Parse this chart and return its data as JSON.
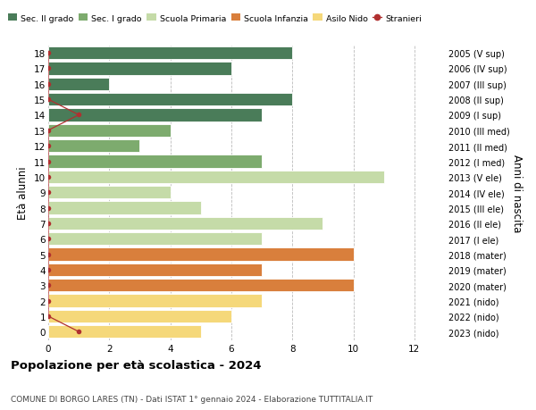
{
  "ages": [
    18,
    17,
    16,
    15,
    14,
    13,
    12,
    11,
    10,
    9,
    8,
    7,
    6,
    5,
    4,
    3,
    2,
    1,
    0
  ],
  "years": [
    "2005 (V sup)",
    "2006 (IV sup)",
    "2007 (III sup)",
    "2008 (II sup)",
    "2009 (I sup)",
    "2010 (III med)",
    "2011 (II med)",
    "2012 (I med)",
    "2013 (V ele)",
    "2014 (IV ele)",
    "2015 (III ele)",
    "2016 (II ele)",
    "2017 (I ele)",
    "2018 (mater)",
    "2019 (mater)",
    "2020 (mater)",
    "2021 (nido)",
    "2022 (nido)",
    "2023 (nido)"
  ],
  "values": [
    8,
    6,
    2,
    8,
    7,
    4,
    3,
    7,
    11,
    4,
    5,
    9,
    7,
    10,
    7,
    10,
    7,
    6,
    5
  ],
  "bar_colors": [
    "#4a7c59",
    "#4a7c59",
    "#4a7c59",
    "#4a7c59",
    "#4a7c59",
    "#7dab6e",
    "#7dab6e",
    "#7dab6e",
    "#c5dba8",
    "#c5dba8",
    "#c5dba8",
    "#c5dba8",
    "#c5dba8",
    "#d97f3c",
    "#d97f3c",
    "#d97f3c",
    "#f5d87a",
    "#f5d87a",
    "#f5d87a"
  ],
  "stranieri_x": [
    0,
    0,
    0,
    0,
    1,
    0,
    0,
    0,
    0,
    0,
    0,
    0,
    0,
    0,
    0,
    0,
    0,
    0,
    1
  ],
  "stranieri_ages": [
    18,
    17,
    16,
    15,
    14,
    13,
    12,
    11,
    10,
    9,
    8,
    7,
    6,
    5,
    4,
    3,
    2,
    1,
    0
  ],
  "stranieri_color": "#b03030",
  "color_sec2": "#4a7c59",
  "color_sec1": "#7dab6e",
  "color_primaria": "#c5dba8",
  "color_infanzia": "#d97f3c",
  "color_nido": "#f5d87a",
  "ylabel_left": "Età alunni",
  "ylabel_right": "Anni di nascita",
  "title": "Popolazione per età scolastica - 2024",
  "subtitle": "COMUNE DI BORGO LARES (TN) - Dati ISTAT 1° gennaio 2024 - Elaborazione TUTTITALIA.IT",
  "xlim": [
    0,
    13
  ],
  "ylim_low": -0.55,
  "ylim_high": 18.55,
  "background_color": "#ffffff",
  "grid_color": "#bbbbbb",
  "bar_height": 0.82
}
